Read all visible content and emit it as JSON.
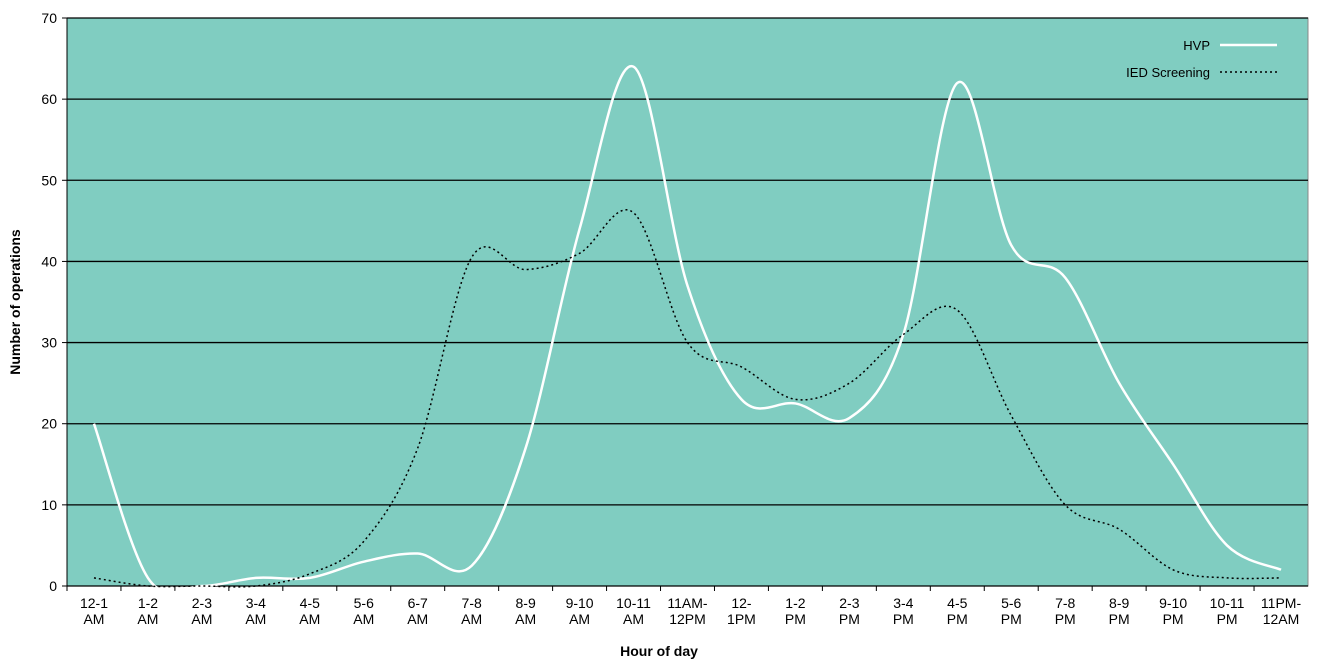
{
  "chart_data": {
    "type": "line",
    "x_label": "Hour of day",
    "y_label": "Number of operations",
    "categories": [
      "12-1\nAM",
      "1-2\nAM",
      "2-3\nAM",
      "3-4\nAM",
      "4-5\nAM",
      "5-6\nAM",
      "6-7\nAM",
      "7-8\nAM",
      "8-9\nAM",
      "9-10\nAM",
      "10-11\nAM",
      "11AM-\n12PM",
      "12-\n1PM",
      "1-2\nPM",
      "2-3\nPM",
      "3-4\nPM",
      "4-5\nPM",
      "5-6\nPM",
      "7-8\nPM",
      "8-9\nPM",
      "9-10\nPM",
      "10-11\nPM",
      "11PM-\n12AM"
    ],
    "series": [
      {
        "name": "HVP",
        "color": "#ffffff",
        "dash": "solid",
        "values": [
          20,
          1,
          0,
          1,
          1,
          3,
          4,
          2.5,
          17,
          44,
          64,
          37,
          23,
          22.5,
          20.7,
          31,
          62,
          42,
          38,
          25,
          15,
          5,
          2
        ]
      },
      {
        "name": "IED Screening",
        "color": "#000000",
        "dash": "dotted",
        "values": [
          1,
          0,
          0,
          0,
          1.5,
          5.5,
          17,
          40.5,
          39,
          41,
          46,
          30,
          27,
          23,
          25,
          31,
          34,
          21,
          10,
          7,
          2,
          1,
          1
        ]
      }
    ],
    "ylim": [
      0,
      70
    ],
    "yticks": [
      0,
      10,
      20,
      30,
      40,
      50,
      60,
      70
    ],
    "grid": true,
    "background": "#80cdc1",
    "legend": "top-right"
  }
}
